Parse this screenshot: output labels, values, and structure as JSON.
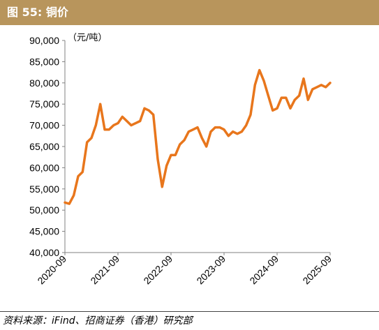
{
  "header": {
    "title_prefix": "图 55:",
    "title_text": "铜价"
  },
  "source": "资料来源：iFind、招商证券（香港）研究部",
  "colors": {
    "header_bg": "#b8955c",
    "series": "#e8761c",
    "axis": "#808080"
  },
  "chart_data": {
    "type": "line",
    "unit_label": "（元/吨）",
    "ylim": [
      40000,
      90000
    ],
    "yticks": [
      40000,
      45000,
      50000,
      55000,
      60000,
      65000,
      70000,
      75000,
      80000,
      85000,
      90000
    ],
    "ytick_labels": [
      "40,000",
      "45,000",
      "50,000",
      "55,000",
      "60,000",
      "65,000",
      "70,000",
      "75,000",
      "80,000",
      "85,000",
      "90,000"
    ],
    "xlim": [
      "2020-09",
      "2025-09"
    ],
    "xticks": [
      "2020-09",
      "2021-09",
      "2022-09",
      "2023-09",
      "2024-09",
      "2025-09"
    ],
    "grid": false,
    "series": [
      {
        "x": [
          "2020-09",
          "2020-10",
          "2020-11",
          "2020-12",
          "2021-01",
          "2021-02",
          "2021-03",
          "2021-04",
          "2021-05",
          "2021-06",
          "2021-07",
          "2021-08",
          "2021-09",
          "2021-10",
          "2021-11",
          "2021-12",
          "2022-01",
          "2022-02",
          "2022-03",
          "2022-04",
          "2022-05",
          "2022-06",
          "2022-07",
          "2022-08",
          "2022-09",
          "2022-10",
          "2022-11",
          "2022-12",
          "2023-01",
          "2023-02",
          "2023-03",
          "2023-04",
          "2023-05",
          "2023-06",
          "2023-07",
          "2023-08",
          "2023-09",
          "2023-10",
          "2023-11",
          "2023-12",
          "2024-01",
          "2024-02",
          "2024-03",
          "2024-04",
          "2024-05",
          "2024-06",
          "2024-07",
          "2024-08",
          "2024-09",
          "2024-10",
          "2024-11",
          "2024-12",
          "2025-01",
          "2025-02",
          "2025-03",
          "2025-04",
          "2025-05",
          "2025-06",
          "2025-07",
          "2025-08",
          "2025-09"
        ],
        "values": [
          51800,
          51500,
          53500,
          58000,
          59000,
          66000,
          67000,
          70000,
          75000,
          69000,
          69000,
          70000,
          70500,
          72000,
          71000,
          70000,
          70500,
          71000,
          74000,
          73500,
          72500,
          62000,
          55500,
          60500,
          63000,
          63000,
          65500,
          66500,
          68500,
          69000,
          69500,
          67000,
          65000,
          68500,
          69500,
          69500,
          69000,
          67500,
          68500,
          68000,
          68500,
          70000,
          72500,
          79500,
          83000,
          80500,
          77000,
          73500,
          74000,
          76500,
          76500,
          74000,
          76000,
          77000,
          81000,
          76000,
          78500,
          79000,
          79500,
          79000,
          80000
        ]
      }
    ]
  }
}
